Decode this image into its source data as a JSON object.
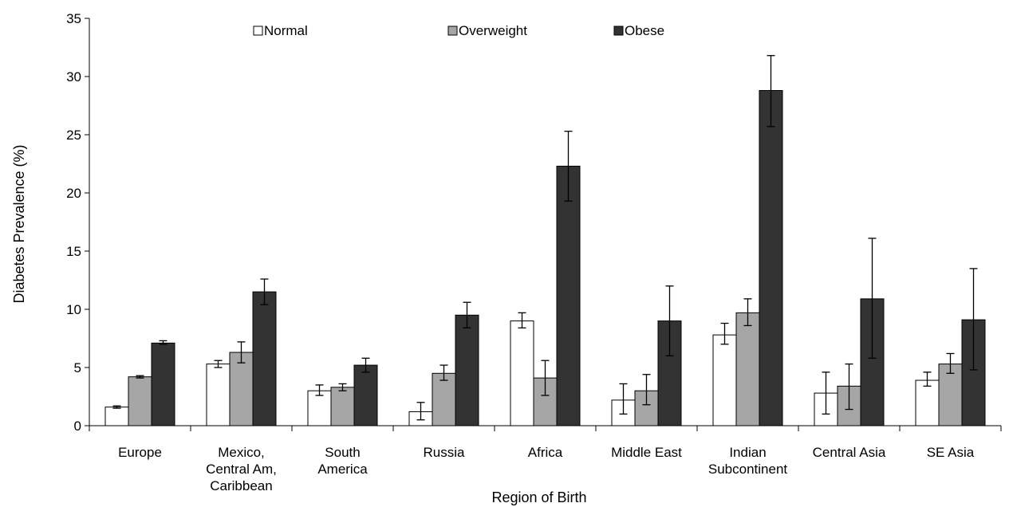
{
  "chart_data": {
    "type": "bar",
    "title": "",
    "xlabel": "Region of Birth",
    "ylabel": "Diabetes Prevalence (%)",
    "ylim": [
      0,
      35
    ],
    "yticks": [
      "0",
      "5",
      "10",
      "15",
      "20",
      "25",
      "30",
      "35"
    ],
    "grid": false,
    "legend_position": "top",
    "categories": [
      [
        "Europe"
      ],
      [
        "Mexico,",
        "Central Am,",
        "Caribbean"
      ],
      [
        "South",
        "America"
      ],
      [
        "Russia"
      ],
      [
        "Africa"
      ],
      [
        "Middle East"
      ],
      [
        "Indian",
        "Subcontinent"
      ],
      [
        "Central Asia"
      ],
      [
        "SE Asia"
      ]
    ],
    "series": [
      {
        "name": "Normal",
        "color": "#ffffff",
        "values": [
          1.6,
          5.3,
          3.0,
          1.2,
          9.0,
          2.2,
          7.8,
          2.8,
          3.9
        ],
        "err_low": [
          1.5,
          5.0,
          2.6,
          0.5,
          8.4,
          1.0,
          7.0,
          1.0,
          3.4
        ],
        "err_high": [
          1.7,
          5.6,
          3.5,
          2.0,
          9.7,
          3.6,
          8.8,
          4.6,
          4.6
        ]
      },
      {
        "name": "Overweight",
        "color": "#a6a6a6",
        "values": [
          4.2,
          6.3,
          3.3,
          4.5,
          4.1,
          3.0,
          9.7,
          3.4,
          5.3
        ],
        "err_low": [
          4.1,
          5.4,
          3.0,
          3.9,
          2.6,
          1.8,
          8.6,
          1.4,
          4.5
        ],
        "err_high": [
          4.3,
          7.2,
          3.6,
          5.2,
          5.6,
          4.4,
          10.9,
          5.3,
          6.2
        ]
      },
      {
        "name": "Obese",
        "color": "#333333",
        "values": [
          7.1,
          11.5,
          5.2,
          9.5,
          22.3,
          9.0,
          28.8,
          10.9,
          9.1
        ],
        "err_low": [
          7.0,
          10.4,
          4.6,
          8.4,
          19.3,
          6.0,
          25.7,
          5.8,
          4.8
        ],
        "err_high": [
          7.3,
          12.6,
          5.8,
          10.6,
          25.3,
          12.0,
          31.8,
          16.1,
          13.5
        ]
      }
    ]
  }
}
